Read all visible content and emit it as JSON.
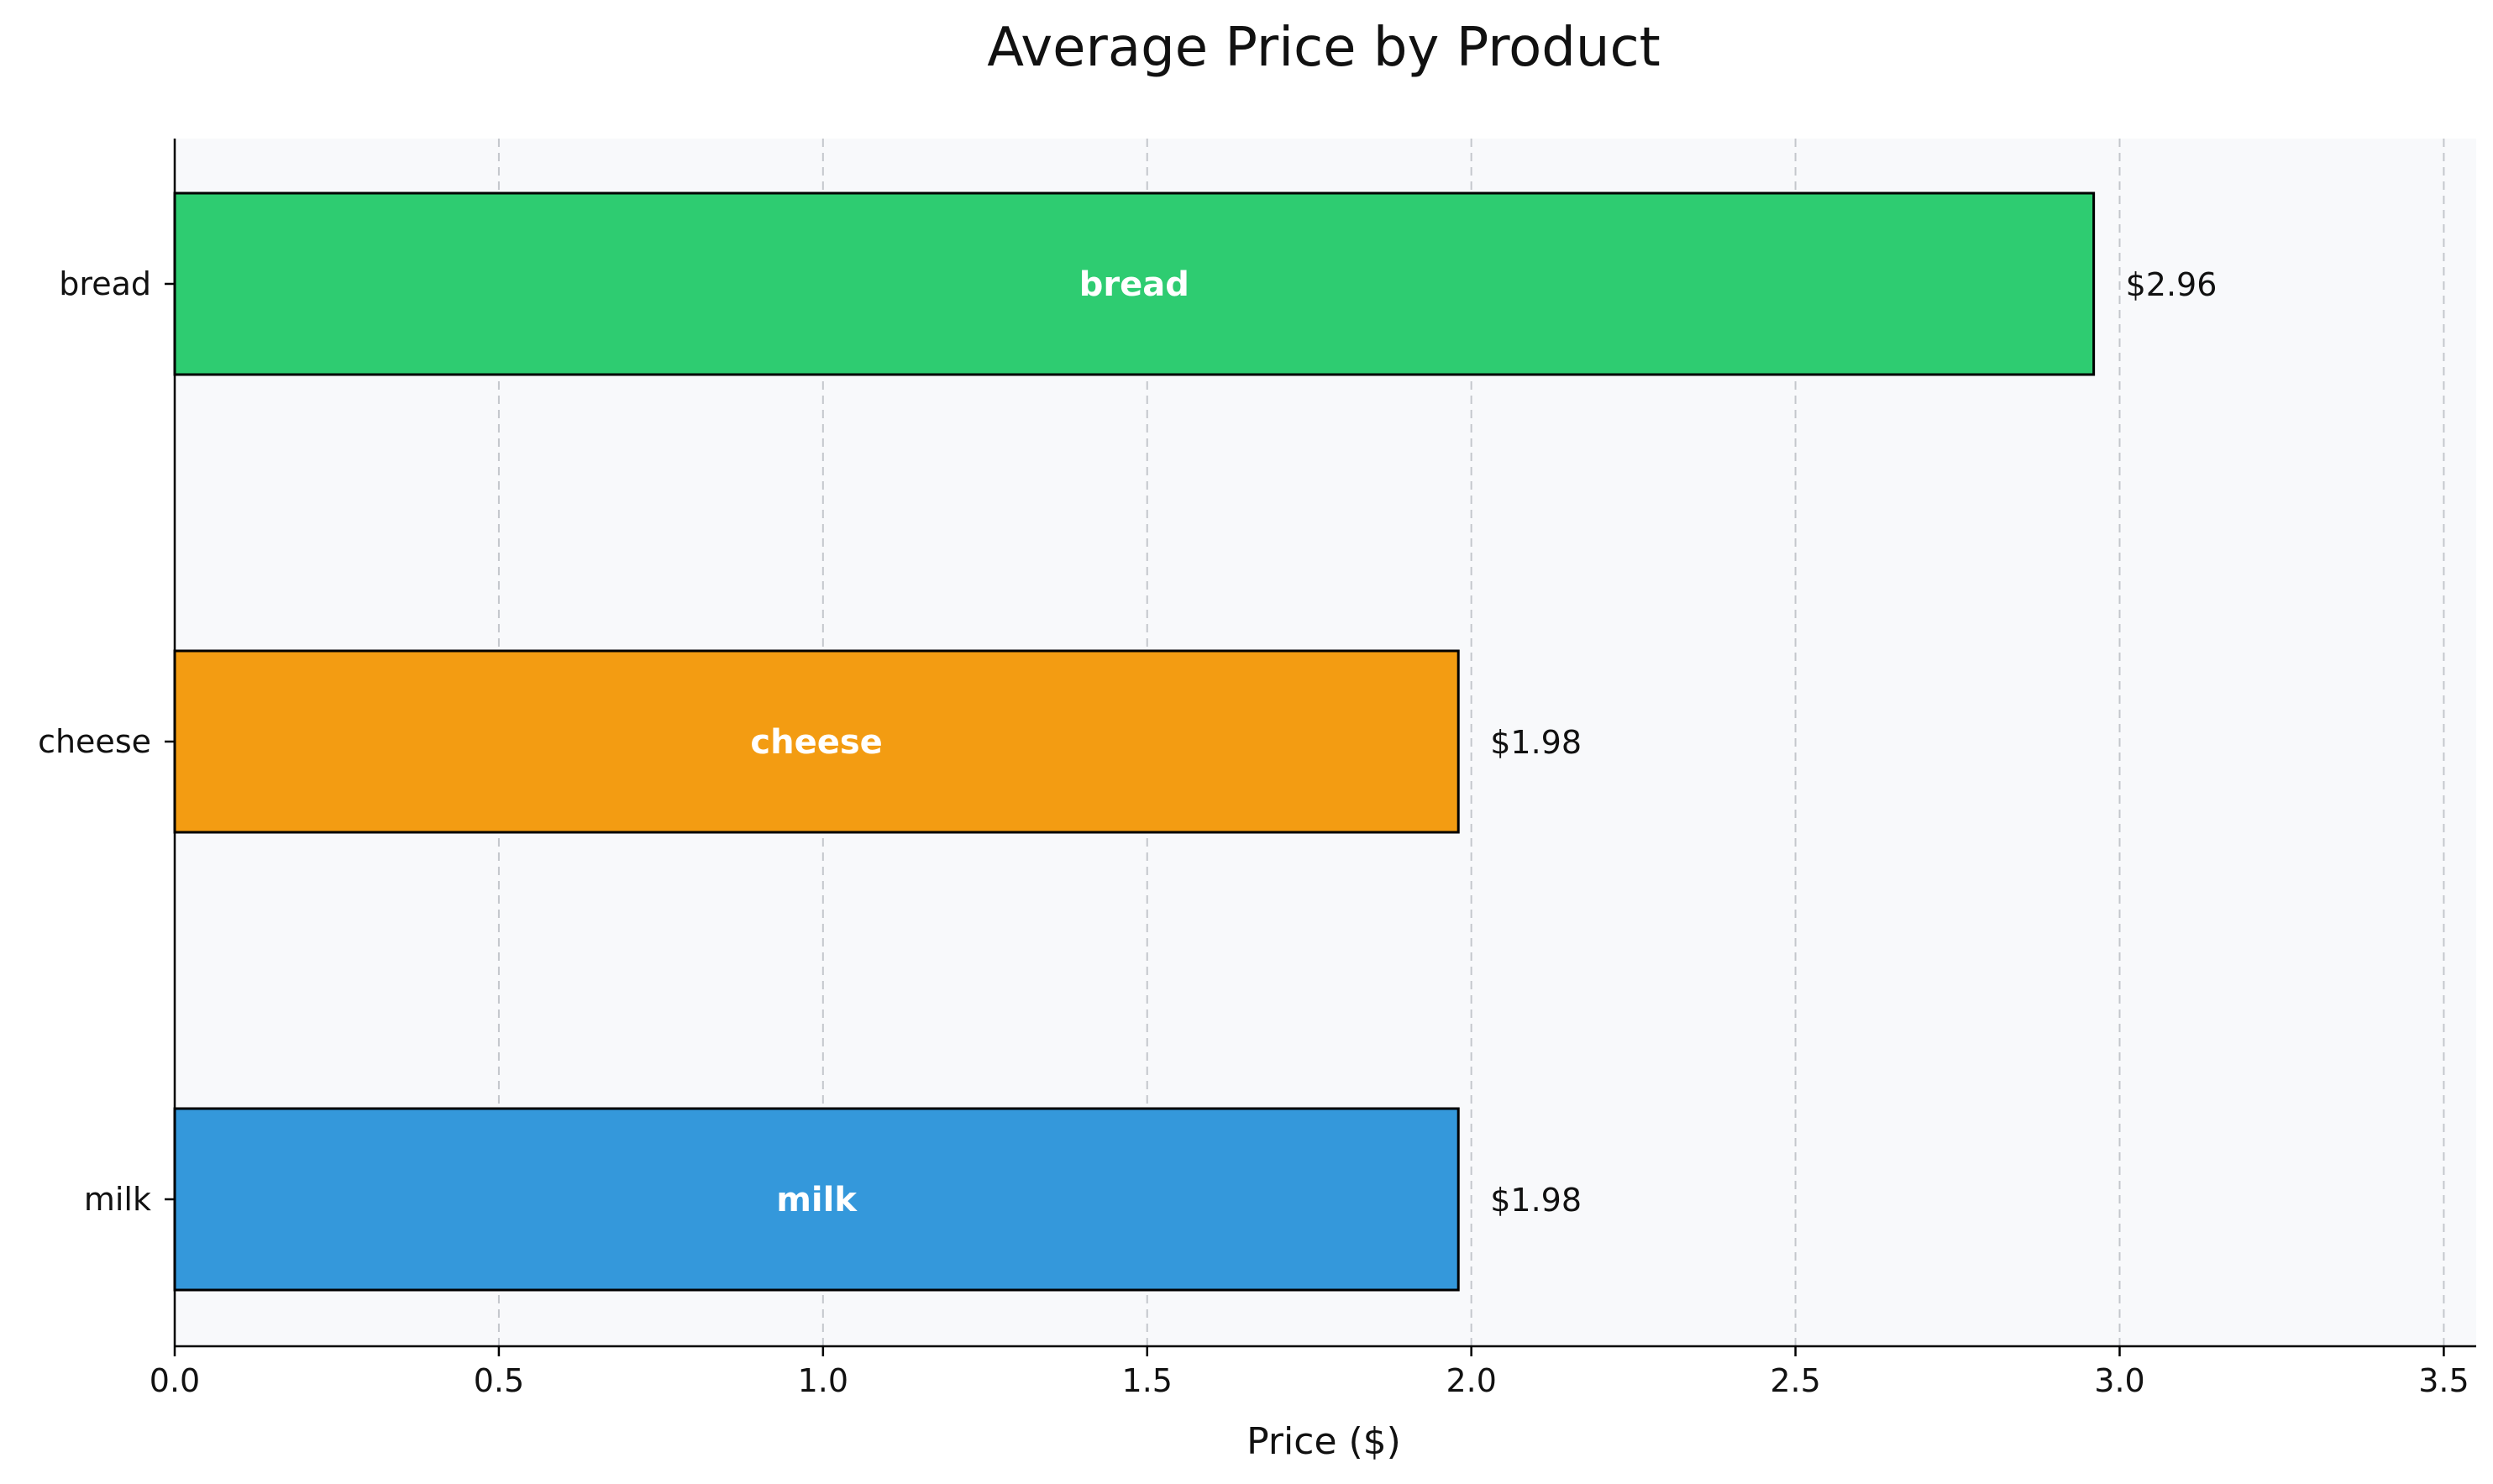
{
  "chart_data": {
    "type": "bar",
    "orientation": "horizontal",
    "title": "Average Price by Product",
    "xlabel": "Price ($)",
    "ylabel": "",
    "xlim": [
      0,
      3.55
    ],
    "xticks": [
      0.0,
      0.5,
      1.0,
      1.5,
      2.0,
      2.5,
      3.0,
      3.5
    ],
    "xtick_labels": [
      "0.0",
      "0.5",
      "1.0",
      "1.5",
      "2.0",
      "2.5",
      "3.0",
      "3.5"
    ],
    "grid": "x, dashed",
    "categories": [
      "bread",
      "cheese",
      "milk"
    ],
    "values": [
      2.96,
      1.98,
      1.98
    ],
    "value_labels": [
      "$2.96",
      "$1.98",
      "$1.98"
    ],
    "colors": [
      "#2ecc71",
      "#f39c12",
      "#3498db"
    ],
    "plot_background": "#f8f9fb",
    "edge_color": "#000000"
  }
}
